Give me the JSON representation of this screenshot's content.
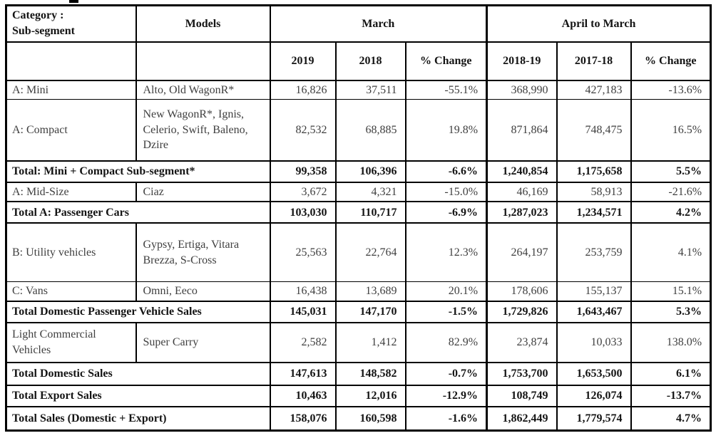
{
  "table": {
    "header": {
      "category_line1": "Category :",
      "category_line2": "Sub-segment",
      "models": "Models",
      "group_march": "March",
      "group_april_to_march": "April to March",
      "sub_columns": [
        "2019",
        "2018",
        "% Change",
        "2018-19",
        "2017-18",
        "% Change"
      ]
    },
    "rows": [
      {
        "type": "data",
        "category": "A: Mini",
        "models": "Alto, Old WagonR*",
        "values": [
          "16,826",
          "37,511",
          "-55.1%",
          "368,990",
          "427,183",
          "-13.6%"
        ]
      },
      {
        "type": "data",
        "category": "A: Compact",
        "models": "New WagonR*, Ignis, Celerio, Swift, Baleno, Dzire",
        "values": [
          "82,532",
          "68,885",
          "19.8%",
          "871,864",
          "748,475",
          "16.5%"
        ]
      },
      {
        "type": "total",
        "label": "Total: Mini + Compact Sub-segment*",
        "values": [
          "99,358",
          "106,396",
          "-6.6%",
          "1,240,854",
          "1,175,658",
          "5.5%"
        ]
      },
      {
        "type": "data",
        "category": "A: Mid-Size",
        "models": "Ciaz",
        "values": [
          "3,672",
          "4,321",
          "-15.0%",
          "46,169",
          "58,913",
          "-21.6%"
        ]
      },
      {
        "type": "total",
        "label": "Total A: Passenger Cars",
        "values": [
          "103,030",
          "110,717",
          "-6.9%",
          "1,287,023",
          "1,234,571",
          "4.2%"
        ]
      },
      {
        "type": "data",
        "category": "B: Utility vehicles",
        "models": "Gypsy, Ertiga, Vitara Brezza, S-Cross",
        "values": [
          "25,563",
          "22,764",
          "12.3%",
          "264,197",
          "253,759",
          "4.1%"
        ]
      },
      {
        "type": "data",
        "category": "C: Vans",
        "models": "Omni, Eeco",
        "values": [
          "16,438",
          "13,689",
          "20.1%",
          "178,606",
          "155,137",
          "15.1%"
        ]
      },
      {
        "type": "total",
        "label": "Total Domestic Passenger Vehicle Sales",
        "values": [
          "145,031",
          "147,170",
          "-1.5%",
          "1,729,826",
          "1,643,467",
          "5.3%"
        ]
      },
      {
        "type": "data",
        "category": "Light Commercial Vehicles",
        "models": "Super Carry",
        "values": [
          "2,582",
          "1,412",
          "82.9%",
          "23,874",
          "10,033",
          "138.0%"
        ]
      },
      {
        "type": "total",
        "label": "Total Domestic Sales",
        "values": [
          "147,613",
          "148,582",
          "-0.7%",
          "1,753,700",
          "1,653,500",
          "6.1%"
        ]
      },
      {
        "type": "total",
        "label": "Total Export Sales",
        "values": [
          "10,463",
          "12,016",
          "-12.9%",
          "108,749",
          "126,074",
          "-13.7%"
        ]
      },
      {
        "type": "total",
        "label": "Total Sales (Domestic + Export)",
        "values": [
          "158,076",
          "160,598",
          "-1.6%",
          "1,862,449",
          "1,779,574",
          "4.7%"
        ]
      }
    ]
  },
  "colors": {
    "border": "#000000",
    "data_text": "#3f3f3f",
    "emphasis_text": "#141414",
    "background": "#ffffff"
  }
}
